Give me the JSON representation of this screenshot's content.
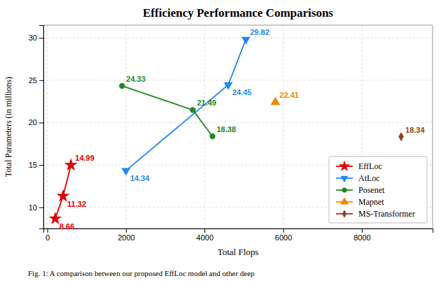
{
  "chart_data": {
    "type": "line",
    "title": "Efficiency Performance Comparisons",
    "x_label": "Total Flops",
    "y_label": "Total Parameters (in millions)",
    "caption": "Fig. 1: A comparison between our proposed EffLoc model and other deep",
    "xlim": [
      -100,
      9800
    ],
    "ylim": [
      7.5,
      31.5
    ],
    "xticks": [
      0,
      2000,
      4000,
      6000,
      8000
    ],
    "yticks": [
      10,
      15,
      20,
      25,
      30
    ],
    "grid": true,
    "legend": "lower right",
    "data_labels": true,
    "series": [
      {
        "name": "EffLoc",
        "color": "#dd0000",
        "marker": "star",
        "x": [
          200,
          400,
          600
        ],
        "values": [
          8.66,
          11.32,
          14.99
        ]
      },
      {
        "name": "AtLoc",
        "color": "#2288ee",
        "marker": "triangle-down",
        "x": [
          2000,
          4600,
          5050
        ],
        "values": [
          14.34,
          24.45,
          29.82
        ]
      },
      {
        "name": "Posenet",
        "color": "#228822",
        "marker": "circle",
        "x": [
          1900,
          3700,
          4200
        ],
        "values": [
          24.33,
          21.49,
          18.38
        ]
      },
      {
        "name": "Mapnet",
        "color": "#ee8800",
        "marker": "triangle-up",
        "x": [
          5800
        ],
        "values": [
          22.41
        ]
      },
      {
        "name": "MS-Transformer",
        "color": "#884422",
        "marker": "diamond",
        "x": [
          9000
        ],
        "values": [
          18.34
        ]
      }
    ]
  }
}
